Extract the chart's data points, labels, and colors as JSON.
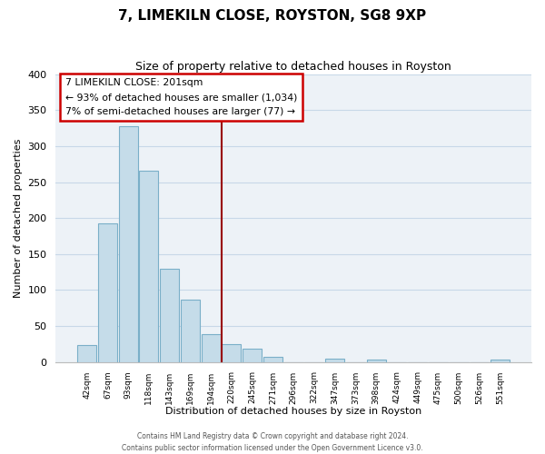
{
  "title": "7, LIMEKILN CLOSE, ROYSTON, SG8 9XP",
  "subtitle": "Size of property relative to detached houses in Royston",
  "xlabel": "Distribution of detached houses by size in Royston",
  "ylabel": "Number of detached properties",
  "bin_labels": [
    "42sqm",
    "67sqm",
    "93sqm",
    "118sqm",
    "143sqm",
    "169sqm",
    "194sqm",
    "220sqm",
    "245sqm",
    "271sqm",
    "296sqm",
    "322sqm",
    "347sqm",
    "373sqm",
    "398sqm",
    "424sqm",
    "449sqm",
    "475sqm",
    "500sqm",
    "526sqm",
    "551sqm"
  ],
  "bin_values": [
    24,
    193,
    328,
    266,
    130,
    86,
    39,
    25,
    18,
    7,
    0,
    0,
    4,
    0,
    3,
    0,
    0,
    0,
    0,
    0,
    3
  ],
  "bar_color": "#c5dce9",
  "bar_edge_color": "#7aafc8",
  "vline_x_index": 6.5,
  "vline_color": "#990000",
  "annotation_title": "7 LIMEKILN CLOSE: 201sqm",
  "annotation_line1": "← 93% of detached houses are smaller (1,034)",
  "annotation_line2": "7% of semi-detached houses are larger (77) →",
  "annotation_box_color": "#ffffff",
  "annotation_box_edge_color": "#cc0000",
  "footer_line1": "Contains HM Land Registry data © Crown copyright and database right 2024.",
  "footer_line2": "Contains public sector information licensed under the Open Government Licence v3.0.",
  "ylim": [
    0,
    400
  ],
  "yticks": [
    0,
    50,
    100,
    150,
    200,
    250,
    300,
    350,
    400
  ],
  "background_color": "#edf2f7",
  "grid_color": "#c8d8e8"
}
